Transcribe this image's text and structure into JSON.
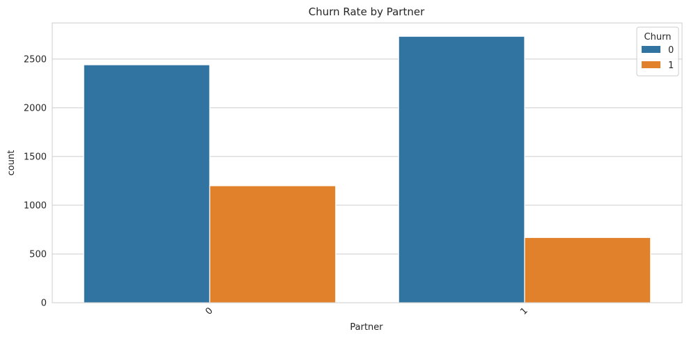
{
  "chart_data": {
    "type": "bar",
    "title": "Churn Rate by Partner",
    "xlabel": "Partner",
    "ylabel": "count",
    "categories": [
      "0",
      "1"
    ],
    "series": [
      {
        "name": "0",
        "values": [
          2441,
          2733
        ],
        "color": "#3274a1"
      },
      {
        "name": "1",
        "values": [
          1200,
          669
        ],
        "color": "#e1812c"
      }
    ],
    "ylim": [
      0,
      2870
    ],
    "yticks": [
      0,
      500,
      1000,
      1500,
      2000,
      2500
    ],
    "grid": true,
    "legend": {
      "title": "Churn",
      "placement": "top-right"
    }
  }
}
